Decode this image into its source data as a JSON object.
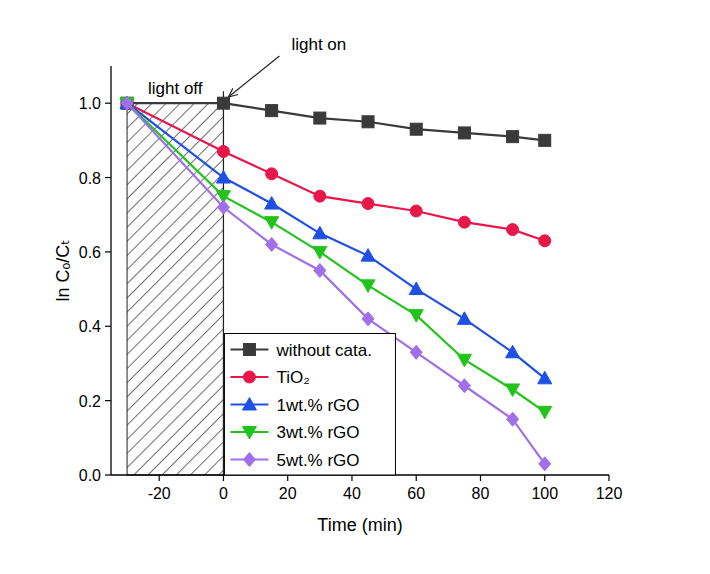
{
  "chart_data": {
    "type": "line",
    "x_label": "Time (min)",
    "y_label": "ln Cₒ/Cₜ",
    "x": [
      -30,
      0,
      15,
      30,
      45,
      60,
      75,
      90,
      100
    ],
    "series": [
      {
        "name": "without cata.",
        "color": "#3a3a3a",
        "marker": "square",
        "values": [
          1.0,
          1.0,
          0.98,
          0.96,
          0.95,
          0.93,
          0.92,
          0.91,
          0.9
        ]
      },
      {
        "name": "TiO₂",
        "color": "#e8174b",
        "marker": "circle",
        "values": [
          1.0,
          0.87,
          0.81,
          0.75,
          0.73,
          0.71,
          0.68,
          0.66,
          0.63
        ]
      },
      {
        "name": "1wt.% rGO",
        "color": "#1f50e6",
        "marker": "triangle",
        "values": [
          1.0,
          0.8,
          0.73,
          0.65,
          0.59,
          0.5,
          0.42,
          0.33,
          0.26
        ]
      },
      {
        "name": "3wt.% rGO",
        "color": "#22c41c",
        "marker": "triangle-down",
        "values": [
          1.0,
          0.75,
          0.68,
          0.6,
          0.51,
          0.43,
          0.31,
          0.23,
          0.17
        ]
      },
      {
        "name": "5wt.% rGO",
        "color": "#a070ea",
        "marker": "diamond",
        "values": [
          1.0,
          0.72,
          0.62,
          0.55,
          0.42,
          0.33,
          0.24,
          0.15,
          0.03
        ]
      }
    ],
    "xlim": [
      -35,
      120
    ],
    "ylim": [
      0,
      1.1
    ],
    "xticks": [
      -20,
      0,
      20,
      40,
      60,
      80,
      100,
      120
    ],
    "yticks": [
      {
        "value": 0,
        "label": "0.0"
      },
      0.2,
      0.4,
      0.6,
      0.8,
      {
        "value": 1,
        "label": "1.0"
      }
    ],
    "annotations": [
      {
        "text": "light off",
        "x": [
          -30,
          0
        ],
        "y": 1
      },
      {
        "text": "light on",
        "x": 0
      }
    ],
    "legend": "bottom-left",
    "grid": false
  }
}
